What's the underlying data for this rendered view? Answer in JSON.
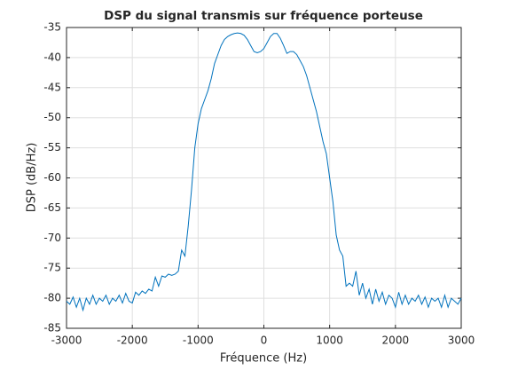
{
  "chart_data": {
    "type": "line",
    "title": "DSP du signal transmis sur fréquence porteuse",
    "x_label": "Fréquence (Hz)",
    "y_label": "DSP (dB/Hz)",
    "x": [
      -3000,
      -2950,
      -2900,
      -2850,
      -2800,
      -2750,
      -2700,
      -2650,
      -2600,
      -2550,
      -2500,
      -2450,
      -2400,
      -2350,
      -2300,
      -2250,
      -2200,
      -2150,
      -2100,
      -2050,
      -2000,
      -1950,
      -1900,
      -1850,
      -1800,
      -1750,
      -1700,
      -1650,
      -1600,
      -1550,
      -1500,
      -1450,
      -1400,
      -1350,
      -1300,
      -1250,
      -1200,
      -1150,
      -1100,
      -1050,
      -1000,
      -950,
      -900,
      -850,
      -800,
      -750,
      -700,
      -650,
      -600,
      -550,
      -500,
      -450,
      -400,
      -350,
      -300,
      -250,
      -200,
      -150,
      -100,
      -50,
      0,
      50,
      100,
      150,
      200,
      250,
      300,
      350,
      400,
      450,
      500,
      550,
      600,
      650,
      700,
      750,
      800,
      850,
      900,
      950,
      1000,
      1050,
      1100,
      1150,
      1200,
      1250,
      1300,
      1350,
      1400,
      1450,
      1500,
      1550,
      1600,
      1650,
      1700,
      1750,
      1800,
      1850,
      1900,
      1950,
      2000,
      2050,
      2100,
      2150,
      2200,
      2250,
      2300,
      2350,
      2400,
      2450,
      2500,
      2550,
      2600,
      2650,
      2700,
      2750,
      2800,
      2850,
      2900,
      2950,
      3000
    ],
    "series": [
      {
        "color": "#0072bd",
        "values": [
          -80.5,
          -81,
          -79.8,
          -81.5,
          -80,
          -82,
          -80,
          -81,
          -79.5,
          -81,
          -80,
          -80.5,
          -79.5,
          -81,
          -80,
          -80.5,
          -79.5,
          -80.8,
          -79.2,
          -80.5,
          -80.8,
          -79,
          -79.5,
          -78.8,
          -79.2,
          -78.5,
          -78.8,
          -76.5,
          -78,
          -76.3,
          -76.5,
          -76,
          -76.2,
          -76,
          -75.5,
          -72,
          -73,
          -68,
          -62,
          -55,
          -51,
          -48.5,
          -47,
          -45.5,
          -43.5,
          -41,
          -39.5,
          -38,
          -37,
          -36.5,
          -36.2,
          -36,
          -35.9,
          -36,
          -36.3,
          -37,
          -38,
          -39,
          -39.2,
          -39,
          -38.5,
          -37.5,
          -36.5,
          -36,
          -36,
          -36.8,
          -38,
          -39.3,
          -39,
          -39,
          -39.5,
          -40.5,
          -41.5,
          -43,
          -45,
          -47,
          -49,
          -51.5,
          -54,
          -56,
          -60,
          -64,
          -69.5,
          -72,
          -73,
          -78,
          -77.5,
          -78,
          -75.5,
          -79.5,
          -77.5,
          -80,
          -78.5,
          -81,
          -78.5,
          -80.5,
          -79,
          -81,
          -79.5,
          -80,
          -81.5,
          -79,
          -81,
          -79.5,
          -81,
          -80,
          -80.5,
          -79.5,
          -81,
          -79.8,
          -81.5,
          -80,
          -80.5,
          -80,
          -81.5,
          -79.5,
          -81.5,
          -80,
          -80.5,
          -81,
          -80
        ]
      }
    ],
    "xlim": [
      -3000,
      3000
    ],
    "xticks": [
      -3000,
      -2000,
      -1000,
      0,
      1000,
      2000,
      3000
    ],
    "ylim": [
      -85,
      -35
    ],
    "yticks": [
      -85,
      -80,
      -75,
      -70,
      -65,
      -60,
      -55,
      -50,
      -45,
      -40,
      -35
    ],
    "grid": true
  }
}
